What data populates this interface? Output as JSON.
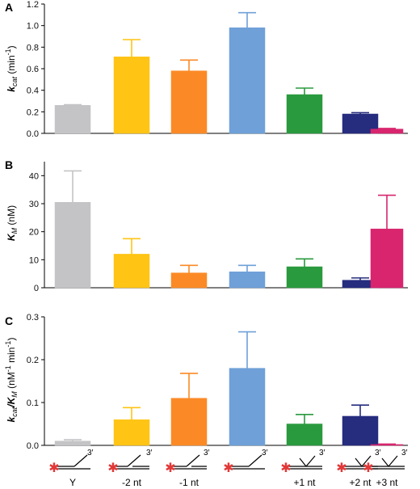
{
  "chart_data": [
    {
      "type": "bar",
      "panel": "A",
      "ylabel_parts": [
        "k",
        "cat",
        " (min",
        "-1",
        ")"
      ],
      "ylim": [
        0,
        1.2
      ],
      "yticks": [
        "0.0",
        "0.2",
        "0.4",
        "0.6",
        "0.8",
        "1.0",
        "1.2"
      ],
      "values": [
        0.26,
        0.71,
        0.58,
        0.98,
        0.36,
        0.18,
        0.04
      ],
      "errors": [
        0.006,
        0.16,
        0.1,
        0.14,
        0.06,
        0.012,
        0.006
      ]
    },
    {
      "type": "bar",
      "panel": "B",
      "ylabel_parts": [
        "K",
        "M",
        " (nM)"
      ],
      "ylim": [
        0,
        45
      ],
      "yticks": [
        "0",
        "10",
        "20",
        "30",
        "40"
      ],
      "values": [
        30.5,
        12.0,
        5.3,
        5.7,
        7.5,
        2.7,
        21.0
      ],
      "errors": [
        11.2,
        5.5,
        2.7,
        2.3,
        2.8,
        0.8,
        12.0
      ]
    },
    {
      "type": "bar",
      "panel": "C",
      "ylabel_parts": [
        "k",
        "cat",
        "/K",
        "M",
        " (nM",
        "-1",
        " min",
        "-1",
        ")"
      ],
      "ylim": [
        0,
        0.3
      ],
      "yticks": [
        "0.0",
        "0.1",
        "0.2",
        "0.3"
      ],
      "values": [
        0.01,
        0.06,
        0.11,
        0.18,
        0.05,
        0.068,
        0.002
      ],
      "errors": [
        0.003,
        0.028,
        0.058,
        0.085,
        0.022,
        0.026,
        0.001
      ]
    }
  ],
  "categories": [
    "Y",
    "-2 nt",
    "-1 nt",
    "",
    "+1 nt",
    "+2 nt",
    "+3 nt"
  ],
  "substrate_end_label": "3′",
  "colors": [
    "#c4c4c6",
    "#ffc414",
    "#fb8a26",
    "#6fa0d8",
    "#2a9a3e",
    "#262c7e",
    "#d8256e"
  ]
}
